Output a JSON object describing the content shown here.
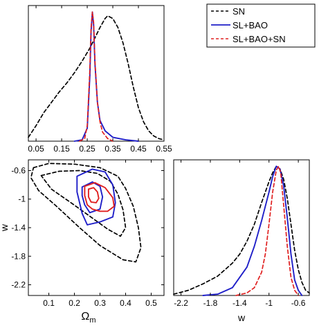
{
  "colors": {
    "sn": "#000000",
    "sl_bao": "#1f1fc8",
    "sl_bao_sn": "#e02020"
  },
  "legend": {
    "placement": "top-right",
    "entries": [
      {
        "key": "sn",
        "label": "SN",
        "color": "#000000",
        "style": "dashed"
      },
      {
        "key": "sl_bao",
        "label": "SL+BAO",
        "color": "#1f1fc8",
        "style": "solid"
      },
      {
        "key": "sl_bao_sn",
        "label": "SL+BAO+SN",
        "color": "#e02020",
        "style": "dashed"
      }
    ]
  },
  "chart_data": [
    {
      "id": "omega-m-posterior",
      "type": "line",
      "xlabel": "",
      "ylabel": "",
      "xlim": [
        0.02,
        0.55
      ],
      "ylim": [
        0,
        1.05
      ],
      "xticks": [
        "0.05",
        "0.15",
        "0.25",
        "0.35",
        "0.45",
        "0.55"
      ],
      "xtick_values": [
        0.05,
        0.15,
        0.25,
        0.35,
        0.45,
        0.55
      ],
      "series": [
        {
          "key": "sn",
          "style": "dashed",
          "color": "#000000",
          "x": [
            0.02,
            0.05,
            0.08,
            0.11,
            0.14,
            0.17,
            0.2,
            0.23,
            0.26,
            0.28,
            0.3,
            0.32,
            0.33,
            0.35,
            0.37,
            0.39,
            0.41,
            0.43,
            0.45,
            0.47,
            0.49,
            0.51,
            0.53,
            0.55
          ],
          "y": [
            0.03,
            0.12,
            0.22,
            0.3,
            0.38,
            0.45,
            0.53,
            0.62,
            0.72,
            0.8,
            0.88,
            0.95,
            0.97,
            0.95,
            0.88,
            0.76,
            0.6,
            0.42,
            0.26,
            0.15,
            0.08,
            0.04,
            0.02,
            0.01
          ]
        },
        {
          "key": "sl_bao",
          "style": "solid",
          "color": "#1f1fc8",
          "x": [
            0.2,
            0.23,
            0.25,
            0.26,
            0.265,
            0.27,
            0.275,
            0.28,
            0.29,
            0.3,
            0.32,
            0.35,
            0.4,
            0.45
          ],
          "y": [
            0.0,
            0.01,
            0.1,
            0.5,
            0.85,
            1.0,
            0.9,
            0.6,
            0.3,
            0.16,
            0.08,
            0.03,
            0.01,
            0.0
          ]
        },
        {
          "key": "sl_bao_sn",
          "style": "dashed",
          "color": "#e02020",
          "x": [
            0.22,
            0.24,
            0.25,
            0.26,
            0.265,
            0.27,
            0.275,
            0.28,
            0.29,
            0.3,
            0.31,
            0.33,
            0.35
          ],
          "y": [
            0.0,
            0.02,
            0.12,
            0.55,
            0.88,
            1.0,
            0.92,
            0.62,
            0.3,
            0.15,
            0.07,
            0.02,
            0.0
          ]
        }
      ]
    },
    {
      "id": "omega-m-w-contours",
      "type": "line",
      "xlabel": "Ω_m",
      "ylabel": "w",
      "xlim": [
        0.02,
        0.55
      ],
      "ylim": [
        -2.35,
        -0.45
      ],
      "xticks": [
        "0.1",
        "0.2",
        "0.3",
        "0.4",
        "0.5"
      ],
      "xtick_values": [
        0.1,
        0.2,
        0.3,
        0.4,
        0.5
      ],
      "yticks": [
        "-0.6",
        "-1",
        "-1.4",
        "-1.8",
        "-2.2"
      ],
      "ytick_values": [
        -0.6,
        -1,
        -1.4,
        -1.8,
        -2.2
      ],
      "series": [
        {
          "key": "sn",
          "style": "dashed",
          "color": "#000000",
          "level": "outer",
          "x": [
            0.04,
            0.1,
            0.2,
            0.3,
            0.37,
            0.4,
            0.43,
            0.45,
            0.46,
            0.44,
            0.39,
            0.3,
            0.22,
            0.13,
            0.06,
            0.03,
            0.04
          ],
          "y": [
            -0.56,
            -0.5,
            -0.51,
            -0.56,
            -0.68,
            -0.85,
            -1.1,
            -1.4,
            -1.68,
            -1.88,
            -1.85,
            -1.65,
            -1.4,
            -1.1,
            -0.88,
            -0.7,
            -0.56
          ]
        },
        {
          "key": "sn",
          "style": "dashed",
          "color": "#000000",
          "level": "inner",
          "x": [
            0.07,
            0.14,
            0.22,
            0.29,
            0.34,
            0.37,
            0.39,
            0.4,
            0.38,
            0.33,
            0.26,
            0.19,
            0.11,
            0.07
          ],
          "y": [
            -0.67,
            -0.61,
            -0.6,
            -0.64,
            -0.75,
            -0.93,
            -1.15,
            -1.4,
            -1.52,
            -1.42,
            -1.24,
            -1.06,
            -0.86,
            -0.67
          ]
        },
        {
          "key": "sl_bao",
          "style": "solid",
          "color": "#1f1fc8",
          "level": "outer",
          "x": [
            0.21,
            0.27,
            0.32,
            0.35,
            0.36,
            0.35,
            0.3,
            0.25,
            0.23,
            0.21,
            0.21
          ],
          "y": [
            -0.68,
            -0.58,
            -0.62,
            -0.8,
            -1.05,
            -1.25,
            -1.32,
            -1.36,
            -1.2,
            -0.9,
            -0.68
          ]
        },
        {
          "key": "sl_bao",
          "style": "solid",
          "color": "#1f1fc8",
          "level": "inner",
          "x": [
            0.23,
            0.27,
            0.3,
            0.31,
            0.3,
            0.26,
            0.24,
            0.23,
            0.23
          ],
          "y": [
            -0.83,
            -0.76,
            -0.82,
            -0.97,
            -1.14,
            -1.19,
            -1.08,
            -0.95,
            -0.83
          ]
        },
        {
          "key": "sl_bao_sn",
          "style": "solid",
          "color": "#e02020",
          "level": "outer",
          "x": [
            0.24,
            0.28,
            0.32,
            0.35,
            0.355,
            0.33,
            0.3,
            0.27,
            0.25,
            0.24,
            0.24
          ],
          "y": [
            -0.82,
            -0.77,
            -0.84,
            -0.98,
            -1.1,
            -1.17,
            -1.17,
            -1.14,
            -1.08,
            -0.95,
            -0.82
          ]
        },
        {
          "key": "sl_bao_sn",
          "style": "solid",
          "color": "#e02020",
          "level": "inner",
          "x": [
            0.255,
            0.275,
            0.29,
            0.295,
            0.285,
            0.265,
            0.255,
            0.255
          ],
          "y": [
            -0.86,
            -0.84,
            -0.9,
            -0.99,
            -1.05,
            -1.04,
            -0.97,
            -0.86
          ]
        }
      ]
    },
    {
      "id": "w-posterior",
      "type": "line",
      "xlabel": "w",
      "ylabel": "",
      "xlim": [
        -2.3,
        -0.45
      ],
      "ylim": [
        0,
        1.05
      ],
      "xticks": [
        "-2.2",
        "-1.8",
        "-1.4",
        "-1",
        "-0.6"
      ],
      "xtick_values": [
        -2.2,
        -1.8,
        -1.4,
        -1,
        -0.6
      ],
      "series": [
        {
          "key": "sn",
          "style": "dashed",
          "color": "#000000",
          "x": [
            -2.3,
            -2.1,
            -1.9,
            -1.7,
            -1.5,
            -1.4,
            -1.3,
            -1.2,
            -1.1,
            -1.0,
            -0.95,
            -0.9,
            -0.85,
            -0.8,
            -0.75,
            -0.7,
            -0.65,
            -0.6,
            -0.55,
            -0.5,
            -0.45
          ],
          "y": [
            0.01,
            0.04,
            0.09,
            0.15,
            0.25,
            0.32,
            0.42,
            0.55,
            0.72,
            0.88,
            0.95,
            1.0,
            0.98,
            0.9,
            0.75,
            0.55,
            0.35,
            0.2,
            0.1,
            0.04,
            0.02
          ]
        },
        {
          "key": "sl_bao",
          "style": "solid",
          "color": "#1f1fc8",
          "x": [
            -1.9,
            -1.7,
            -1.5,
            -1.3,
            -1.2,
            -1.1,
            -1.0,
            -0.95,
            -0.9,
            -0.85,
            -0.8,
            -0.75,
            -0.7,
            -0.65,
            -0.6,
            -0.55
          ],
          "y": [
            0.0,
            0.01,
            0.06,
            0.22,
            0.38,
            0.58,
            0.8,
            0.92,
            1.0,
            0.98,
            0.85,
            0.6,
            0.32,
            0.12,
            0.04,
            0.0
          ]
        },
        {
          "key": "sl_bao_sn",
          "style": "dashed",
          "color": "#e02020",
          "x": [
            -1.45,
            -1.3,
            -1.2,
            -1.1,
            -1.05,
            -1.0,
            -0.95,
            -0.9,
            -0.87,
            -0.84,
            -0.8,
            -0.75,
            -0.7,
            -0.65,
            -0.6
          ],
          "y": [
            0.0,
            0.02,
            0.06,
            0.18,
            0.32,
            0.55,
            0.8,
            0.97,
            1.0,
            0.95,
            0.7,
            0.38,
            0.14,
            0.04,
            0.0
          ]
        }
      ]
    }
  ]
}
